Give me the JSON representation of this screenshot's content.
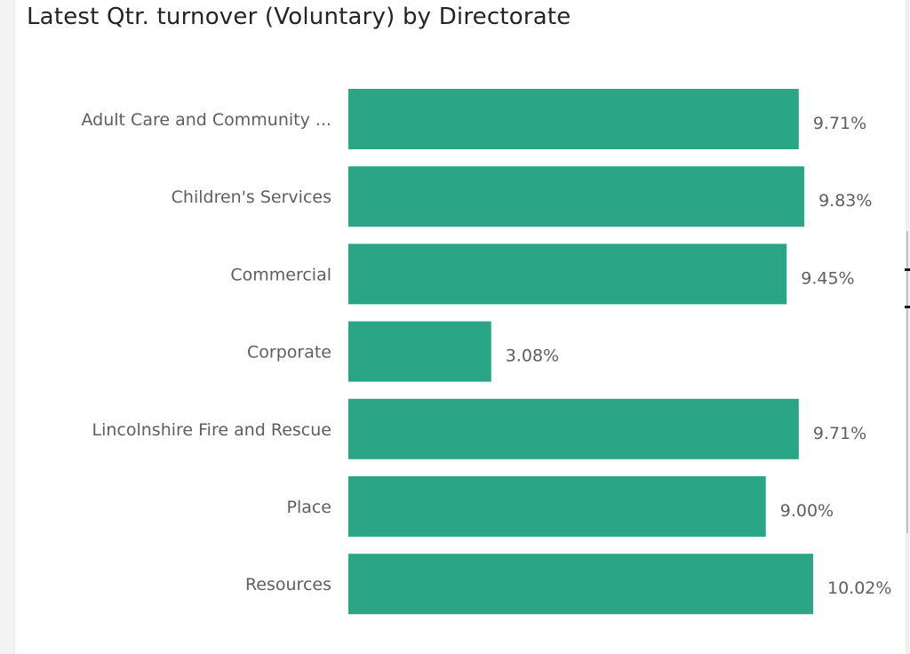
{
  "visual": {
    "title": "Latest Qtr. turnover (Voluntary) by Directorate"
  },
  "chart_data": {
    "type": "bar",
    "orientation": "horizontal",
    "title": "Latest Qtr. turnover (Voluntary) by Directorate",
    "xlabel": "",
    "ylabel": "",
    "categories": [
      "Adult Care and Community ...",
      "Children's Services",
      "Commercial",
      "Corporate",
      "Lincolnshire Fire and Rescue",
      "Place",
      "Resources"
    ],
    "values": [
      9.71,
      9.83,
      9.45,
      3.08,
      9.71,
      9.0,
      10.02
    ],
    "data_labels": [
      "9.71%",
      "9.83%",
      "9.45%",
      "3.08%",
      "9.71%",
      "9.00%",
      "10.02%"
    ],
    "unit": "%",
    "xlim": [
      0,
      10.02
    ],
    "grid": false,
    "legend": "none",
    "bar_color": "#2aa687"
  }
}
